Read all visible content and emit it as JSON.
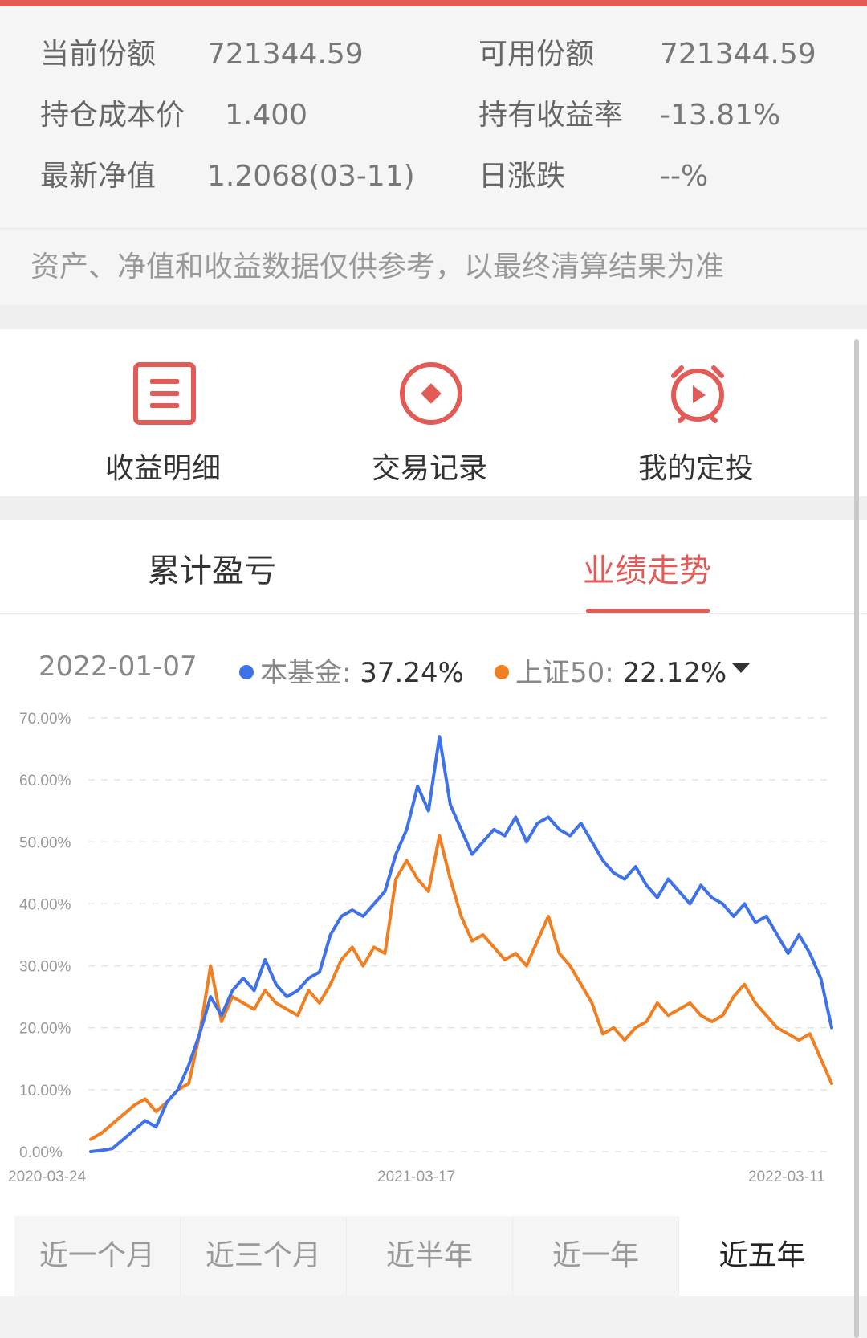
{
  "holdings": {
    "current_shares_label": "当前份额",
    "current_shares_value": "721344.59",
    "available_shares_label": "可用份额",
    "available_shares_value": "721344.59",
    "cost_price_label": "持仓成本价",
    "cost_price_value": "1.400",
    "return_rate_label": "持有收益率",
    "return_rate_value": "-13.81%",
    "nav_label": "最新净值",
    "nav_value": "1.2068(03-11)",
    "daily_change_label": "日涨跌",
    "daily_change_value": "--%"
  },
  "disclaimer": "资产、净值和收益数据仅供参考，以最终清算结果为准",
  "actions": {
    "income_detail": "收益明细",
    "trade_records": "交易记录",
    "my_plans": "我的定投"
  },
  "tabs": {
    "cumulative_pnl": "累计盈亏",
    "performance_trend": "业绩走势"
  },
  "chart_header": {
    "hover_date": "2022-01-07",
    "fund_name": "本基金:",
    "fund_value": "37.24%",
    "benchmark_name": "上证50:",
    "benchmark_value": "22.12%"
  },
  "colors": {
    "accent": "#e25b57",
    "fund_line": "#3f72e8",
    "benchmark_line": "#f07f22"
  },
  "chart_data": {
    "type": "line",
    "y_tick_labels": [
      "0.00%",
      "10.00%",
      "20.00%",
      "30.00%",
      "40.00%",
      "50.00%",
      "60.00%",
      "70.00%"
    ],
    "x_tick_labels": [
      "2020-03-24",
      "2021-03-17",
      "2022-03-11"
    ],
    "ylim": [
      0,
      70
    ],
    "grid": true,
    "series": [
      {
        "name": "本基金",
        "values": [
          0.0,
          0.2,
          0.5,
          2.0,
          3.5,
          5.0,
          4.0,
          8.0,
          10.0,
          14.0,
          19.0,
          25.0,
          22.0,
          26.0,
          28.0,
          26.0,
          31.0,
          27.0,
          25.0,
          26.0,
          28.0,
          29.0,
          35.0,
          38.0,
          39.0,
          38.0,
          40.0,
          42.0,
          48.0,
          52.0,
          59.0,
          55.0,
          67.0,
          56.0,
          52.0,
          48.0,
          50.0,
          52.0,
          51.0,
          54.0,
          50.0,
          53.0,
          54.0,
          52.0,
          51.0,
          53.0,
          50.0,
          47.0,
          45.0,
          44.0,
          46.0,
          43.0,
          41.0,
          44.0,
          42.0,
          40.0,
          43.0,
          41.0,
          40.0,
          38.0,
          40.0,
          37.0,
          38.0,
          35.0,
          32.0,
          35.0,
          32.0,
          28.0,
          20.0
        ]
      },
      {
        "name": "上证50",
        "values": [
          2.0,
          3.0,
          4.5,
          6.0,
          7.5,
          8.5,
          6.5,
          8.0,
          10.0,
          11.0,
          19.0,
          30.0,
          21.0,
          25.0,
          24.0,
          23.0,
          26.0,
          24.0,
          23.0,
          22.0,
          26.0,
          24.0,
          27.0,
          31.0,
          33.0,
          30.0,
          33.0,
          32.0,
          44.0,
          47.0,
          44.0,
          42.0,
          51.0,
          44.0,
          38.0,
          34.0,
          35.0,
          33.0,
          31.0,
          32.0,
          30.0,
          34.0,
          38.0,
          32.0,
          30.0,
          27.0,
          24.0,
          19.0,
          20.0,
          18.0,
          20.0,
          21.0,
          24.0,
          22.0,
          23.0,
          24.0,
          22.0,
          21.0,
          22.0,
          25.0,
          27.0,
          24.0,
          22.0,
          20.0,
          19.0,
          18.0,
          19.0,
          15.0,
          11.0
        ]
      }
    ]
  },
  "periods": {
    "one_month": "近一个月",
    "three_months": "近三个月",
    "half_year": "近半年",
    "one_year": "近一年",
    "five_years": "近五年"
  }
}
